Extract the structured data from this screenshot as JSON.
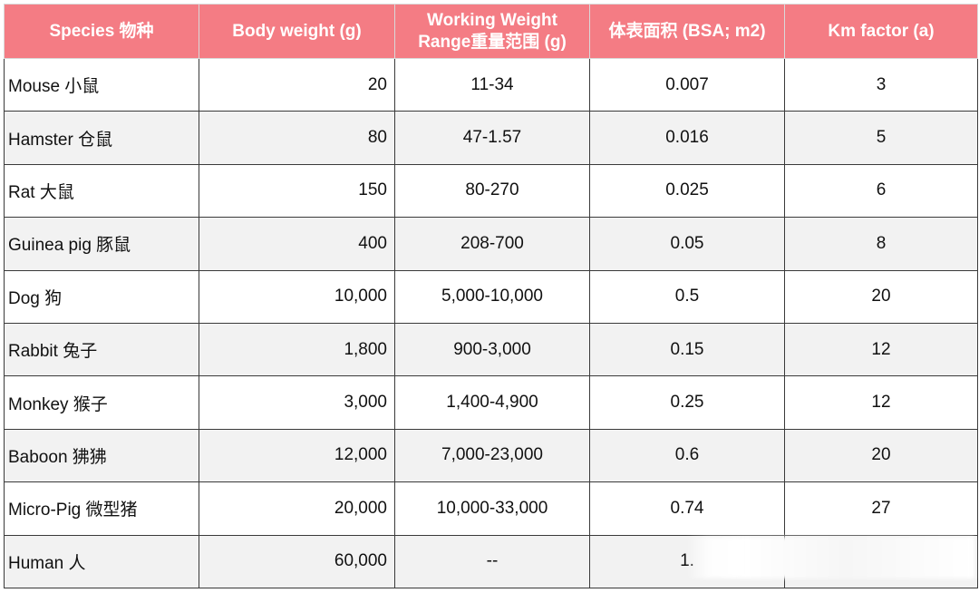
{
  "table": {
    "headers": [
      "Species 物种",
      "Body weight (g)",
      "Working Weight Range重量范围 (g)",
      "体表面积 (BSA; m2)",
      "Km factor (a)"
    ],
    "rows": [
      [
        "Mouse 小鼠",
        "20",
        "11-34",
        "0.007",
        "3"
      ],
      [
        "Hamster 仓鼠",
        "80",
        "47-1.57",
        "0.016",
        "5"
      ],
      [
        "Rat 大鼠",
        "150",
        "80-270",
        "0.025",
        "6"
      ],
      [
        "Guinea pig 豚鼠",
        "400",
        "208-700",
        "0.05",
        "8"
      ],
      [
        "Dog 狗",
        "10,000",
        "5,000-10,000",
        "0.5",
        "20"
      ],
      [
        "Rabbit 兔子",
        "1,800",
        "900-3,000",
        "0.15",
        "12"
      ],
      [
        "Monkey 猴子",
        "3,000",
        "1,400-4,900",
        "0.25",
        "12"
      ],
      [
        "Baboon 狒狒",
        "12,000",
        "7,000-23,000",
        "0.6",
        "20"
      ],
      [
        "Micro-Pig 微型猪",
        "20,000",
        "10,000-33,000",
        "0.74",
        "27"
      ],
      [
        "Human 人",
        "60,000",
        "--",
        "1.",
        ""
      ]
    ]
  },
  "colors": {
    "header_bg": "#f47c84",
    "header_text": "#ffffff",
    "row_alt_bg": "#f2f2f2"
  }
}
